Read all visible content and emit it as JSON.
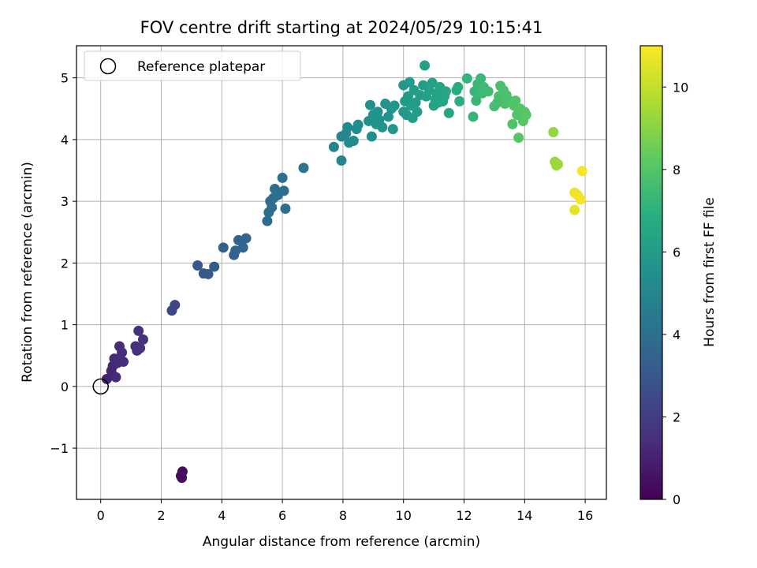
{
  "chart_data": {
    "type": "scatter",
    "title": "FOV centre drift starting at 2024/05/29 10:15:41",
    "xlabel": "Angular distance from reference (arcmin)",
    "ylabel": "Rotation from reference (arcmin)",
    "xlim": [
      -0.8,
      16.7
    ],
    "ylim": [
      -1.83,
      5.52
    ],
    "xticks": [
      0,
      2,
      4,
      6,
      8,
      10,
      12,
      14,
      16
    ],
    "yticks": [
      -1,
      0,
      1,
      2,
      3,
      4,
      5
    ],
    "grid": true,
    "legend": {
      "position": "top-left",
      "entries": [
        "Reference platepar"
      ]
    },
    "reference_point": {
      "x": 0,
      "y": 0,
      "label": "Reference platepar"
    },
    "colorbar": {
      "label": "Hours from first FF file",
      "range": [
        0,
        11
      ],
      "ticks": [
        0,
        2,
        4,
        6,
        8,
        10
      ],
      "colormap": "viridis"
    },
    "points": [
      {
        "x": 2.65,
        "y": -1.45,
        "c": 0.3
      },
      {
        "x": 2.7,
        "y": -1.38,
        "c": 0.35
      },
      {
        "x": 2.68,
        "y": -1.48,
        "c": 0.4
      },
      {
        "x": 0.2,
        "y": 0.12,
        "c": 1.1
      },
      {
        "x": 0.35,
        "y": 0.25,
        "c": 1.15
      },
      {
        "x": 0.4,
        "y": 0.33,
        "c": 1.2
      },
      {
        "x": 0.45,
        "y": 0.45,
        "c": 1.25
      },
      {
        "x": 0.5,
        "y": 0.15,
        "c": 1.3
      },
      {
        "x": 0.55,
        "y": 0.38,
        "c": 1.3
      },
      {
        "x": 0.6,
        "y": 0.45,
        "c": 1.35
      },
      {
        "x": 0.62,
        "y": 0.65,
        "c": 1.35
      },
      {
        "x": 0.7,
        "y": 0.55,
        "c": 1.4
      },
      {
        "x": 0.75,
        "y": 0.4,
        "c": 1.4
      },
      {
        "x": 1.15,
        "y": 0.65,
        "c": 1.5
      },
      {
        "x": 1.2,
        "y": 0.58,
        "c": 1.55
      },
      {
        "x": 1.25,
        "y": 0.9,
        "c": 1.6
      },
      {
        "x": 1.3,
        "y": 0.62,
        "c": 1.6
      },
      {
        "x": 1.4,
        "y": 0.76,
        "c": 1.65
      },
      {
        "x": 2.35,
        "y": 1.23,
        "c": 2.3
      },
      {
        "x": 2.45,
        "y": 1.32,
        "c": 2.35
      },
      {
        "x": 3.2,
        "y": 1.96,
        "c": 3.0
      },
      {
        "x": 3.4,
        "y": 1.83,
        "c": 3.05
      },
      {
        "x": 3.55,
        "y": 1.82,
        "c": 3.1
      },
      {
        "x": 3.75,
        "y": 1.94,
        "c": 3.15
      },
      {
        "x": 4.05,
        "y": 2.25,
        "c": 3.4
      },
      {
        "x": 4.4,
        "y": 2.13,
        "c": 3.5
      },
      {
        "x": 4.45,
        "y": 2.2,
        "c": 3.55
      },
      {
        "x": 4.55,
        "y": 2.37,
        "c": 3.6
      },
      {
        "x": 4.7,
        "y": 2.25,
        "c": 3.6
      },
      {
        "x": 4.8,
        "y": 2.4,
        "c": 3.65
      },
      {
        "x": 5.5,
        "y": 2.68,
        "c": 3.9
      },
      {
        "x": 5.55,
        "y": 2.82,
        "c": 3.9
      },
      {
        "x": 5.6,
        "y": 3.0,
        "c": 3.95
      },
      {
        "x": 5.65,
        "y": 2.9,
        "c": 3.95
      },
      {
        "x": 5.7,
        "y": 3.05,
        "c": 4.0
      },
      {
        "x": 5.75,
        "y": 3.2,
        "c": 4.0
      },
      {
        "x": 5.85,
        "y": 3.1,
        "c": 4.05
      },
      {
        "x": 6.0,
        "y": 3.38,
        "c": 4.1
      },
      {
        "x": 6.05,
        "y": 3.17,
        "c": 4.1
      },
      {
        "x": 6.1,
        "y": 2.88,
        "c": 4.1
      },
      {
        "x": 6.7,
        "y": 3.54,
        "c": 4.3
      },
      {
        "x": 7.7,
        "y": 3.88,
        "c": 5.0
      },
      {
        "x": 7.95,
        "y": 3.66,
        "c": 5.05
      },
      {
        "x": 7.95,
        "y": 4.05,
        "c": 5.1
      },
      {
        "x": 8.1,
        "y": 4.1,
        "c": 5.15
      },
      {
        "x": 8.15,
        "y": 4.2,
        "c": 5.2
      },
      {
        "x": 8.2,
        "y": 3.95,
        "c": 5.25
      },
      {
        "x": 8.35,
        "y": 3.98,
        "c": 5.3
      },
      {
        "x": 8.45,
        "y": 4.17,
        "c": 5.3
      },
      {
        "x": 8.5,
        "y": 4.24,
        "c": 5.35
      },
      {
        "x": 8.85,
        "y": 4.3,
        "c": 5.5
      },
      {
        "x": 8.9,
        "y": 4.56,
        "c": 5.55
      },
      {
        "x": 8.95,
        "y": 4.05,
        "c": 5.55
      },
      {
        "x": 9.0,
        "y": 4.4,
        "c": 5.6
      },
      {
        "x": 9.1,
        "y": 4.25,
        "c": 5.6
      },
      {
        "x": 9.15,
        "y": 4.45,
        "c": 5.65
      },
      {
        "x": 9.2,
        "y": 4.32,
        "c": 5.65
      },
      {
        "x": 9.3,
        "y": 4.2,
        "c": 5.7
      },
      {
        "x": 9.4,
        "y": 4.58,
        "c": 5.7
      },
      {
        "x": 9.5,
        "y": 4.37,
        "c": 5.75
      },
      {
        "x": 9.6,
        "y": 4.5,
        "c": 5.75
      },
      {
        "x": 9.65,
        "y": 4.17,
        "c": 5.8
      },
      {
        "x": 9.7,
        "y": 4.55,
        "c": 5.8
      },
      {
        "x": 10.0,
        "y": 4.88,
        "c": 5.9
      },
      {
        "x": 10.0,
        "y": 4.45,
        "c": 5.9
      },
      {
        "x": 10.05,
        "y": 4.62,
        "c": 5.95
      },
      {
        "x": 10.1,
        "y": 4.4,
        "c": 5.95
      },
      {
        "x": 10.15,
        "y": 4.7,
        "c": 6.0
      },
      {
        "x": 10.2,
        "y": 4.93,
        "c": 6.0
      },
      {
        "x": 10.25,
        "y": 4.55,
        "c": 6.05
      },
      {
        "x": 10.3,
        "y": 4.35,
        "c": 6.05
      },
      {
        "x": 10.35,
        "y": 4.8,
        "c": 6.1
      },
      {
        "x": 10.4,
        "y": 4.6,
        "c": 6.1
      },
      {
        "x": 10.45,
        "y": 4.45,
        "c": 6.15
      },
      {
        "x": 10.55,
        "y": 4.72,
        "c": 6.15
      },
      {
        "x": 10.65,
        "y": 4.88,
        "c": 6.2
      },
      {
        "x": 10.7,
        "y": 5.2,
        "c": 6.25
      },
      {
        "x": 10.75,
        "y": 4.7,
        "c": 6.25
      },
      {
        "x": 10.85,
        "y": 4.8,
        "c": 6.3
      },
      {
        "x": 10.95,
        "y": 4.92,
        "c": 6.3
      },
      {
        "x": 11.0,
        "y": 4.55,
        "c": 6.35
      },
      {
        "x": 11.05,
        "y": 4.65,
        "c": 6.35
      },
      {
        "x": 11.1,
        "y": 4.75,
        "c": 6.4
      },
      {
        "x": 11.15,
        "y": 4.6,
        "c": 6.4
      },
      {
        "x": 11.2,
        "y": 4.85,
        "c": 6.45
      },
      {
        "x": 11.3,
        "y": 4.62,
        "c": 6.5
      },
      {
        "x": 11.35,
        "y": 4.7,
        "c": 6.5
      },
      {
        "x": 11.4,
        "y": 4.78,
        "c": 6.55
      },
      {
        "x": 11.5,
        "y": 4.43,
        "c": 6.6
      },
      {
        "x": 11.75,
        "y": 4.8,
        "c": 6.9
      },
      {
        "x": 11.8,
        "y": 4.85,
        "c": 6.9
      },
      {
        "x": 11.85,
        "y": 4.62,
        "c": 6.95
      },
      {
        "x": 12.1,
        "y": 4.99,
        "c": 7.2
      },
      {
        "x": 12.3,
        "y": 4.37,
        "c": 7.3
      },
      {
        "x": 12.35,
        "y": 4.78,
        "c": 7.35
      },
      {
        "x": 12.4,
        "y": 4.63,
        "c": 7.35
      },
      {
        "x": 12.45,
        "y": 4.9,
        "c": 7.4
      },
      {
        "x": 12.55,
        "y": 4.99,
        "c": 7.45
      },
      {
        "x": 12.6,
        "y": 4.75,
        "c": 7.5
      },
      {
        "x": 12.65,
        "y": 4.85,
        "c": 7.5
      },
      {
        "x": 12.8,
        "y": 4.78,
        "c": 7.55
      },
      {
        "x": 13.0,
        "y": 4.54,
        "c": 7.7
      },
      {
        "x": 13.1,
        "y": 4.6,
        "c": 7.7
      },
      {
        "x": 13.15,
        "y": 4.7,
        "c": 7.75
      },
      {
        "x": 13.2,
        "y": 4.87,
        "c": 7.8
      },
      {
        "x": 13.3,
        "y": 4.8,
        "c": 7.8
      },
      {
        "x": 13.35,
        "y": 4.58,
        "c": 7.85
      },
      {
        "x": 13.4,
        "y": 4.72,
        "c": 7.85
      },
      {
        "x": 13.5,
        "y": 4.63,
        "c": 7.9
      },
      {
        "x": 13.6,
        "y": 4.25,
        "c": 7.95
      },
      {
        "x": 13.65,
        "y": 4.55,
        "c": 7.95
      },
      {
        "x": 13.7,
        "y": 4.63,
        "c": 8.0
      },
      {
        "x": 13.75,
        "y": 4.4,
        "c": 8.0
      },
      {
        "x": 13.8,
        "y": 4.03,
        "c": 8.05
      },
      {
        "x": 13.85,
        "y": 4.5,
        "c": 8.05
      },
      {
        "x": 13.95,
        "y": 4.3,
        "c": 8.1
      },
      {
        "x": 14.0,
        "y": 4.45,
        "c": 8.1
      },
      {
        "x": 14.05,
        "y": 4.4,
        "c": 8.15
      },
      {
        "x": 14.95,
        "y": 4.12,
        "c": 9.2
      },
      {
        "x": 15.0,
        "y": 3.64,
        "c": 9.3
      },
      {
        "x": 15.05,
        "y": 3.58,
        "c": 9.35
      },
      {
        "x": 15.1,
        "y": 3.6,
        "c": 9.4
      },
      {
        "x": 15.65,
        "y": 2.86,
        "c": 10.6
      },
      {
        "x": 15.65,
        "y": 3.14,
        "c": 10.7
      },
      {
        "x": 15.75,
        "y": 3.1,
        "c": 10.8
      },
      {
        "x": 15.85,
        "y": 3.03,
        "c": 10.85
      },
      {
        "x": 15.9,
        "y": 3.49,
        "c": 10.9
      }
    ]
  }
}
